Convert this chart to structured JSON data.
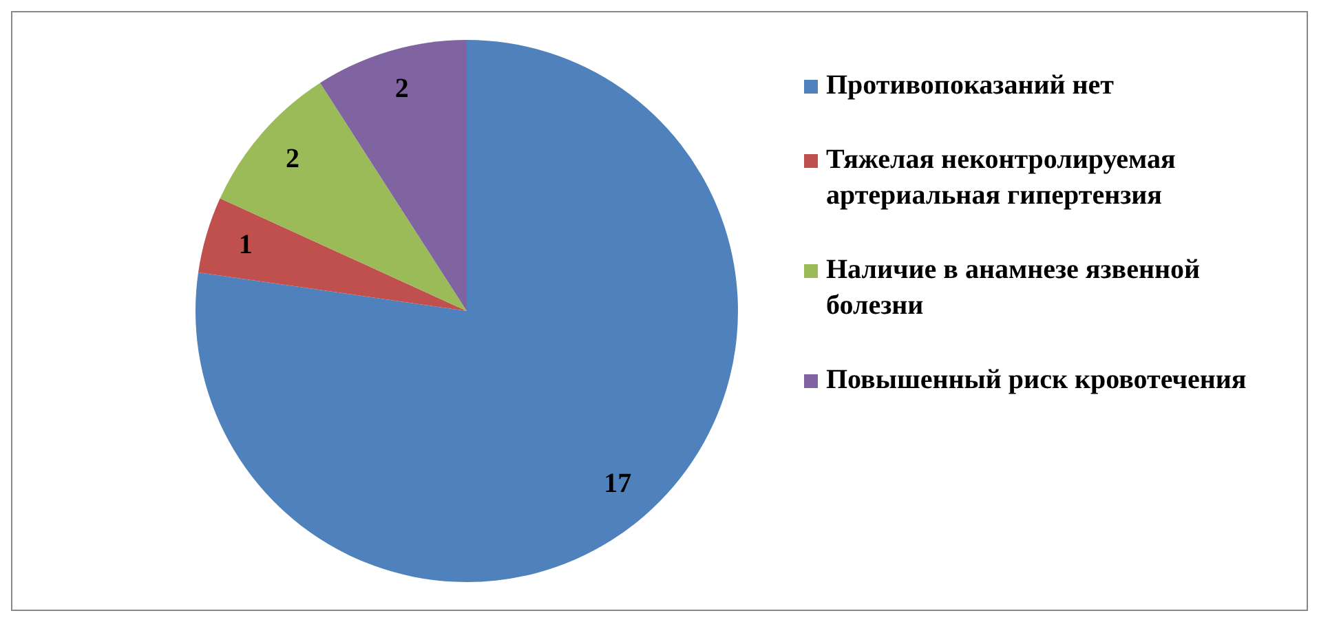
{
  "chart_data": {
    "type": "pie",
    "categories": [
      "Противопоказаний  нет",
      "Тяжелая неконтролируемая артериальная  гипертензия",
      "Наличие в анамнезе язвенной болезни",
      "Повышенный риск кровотечения"
    ],
    "values": [
      17,
      1,
      2,
      2
    ],
    "colors": [
      "#4f81bd",
      "#c0504d",
      "#9bbb59",
      "#8064a2"
    ],
    "data_labels": true,
    "legend": "right"
  }
}
